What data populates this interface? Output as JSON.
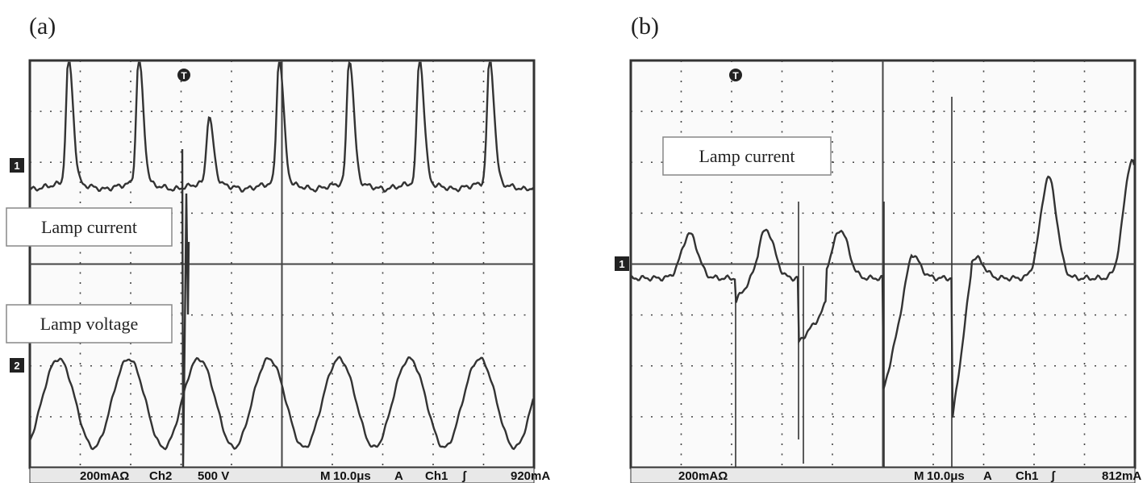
{
  "panels": [
    {
      "label": "(a)",
      "trigger_marker": "T",
      "channel_markers": [
        "1",
        "2"
      ],
      "annotations": [
        "Lamp current",
        "Lamp voltage"
      ],
      "status": [
        "200mAΩ",
        "Ch2",
        "500 V",
        "M",
        "10.0μs",
        "A",
        "Ch1",
        "ʃ",
        "920mA"
      ]
    },
    {
      "label": "(b)",
      "trigger_marker": "T",
      "channel_markers": [
        "1"
      ],
      "annotations": [
        "Lamp current"
      ],
      "status": [
        "200mAΩ",
        "M",
        "10.0μs",
        "A",
        "Ch1",
        "ʃ",
        "812mA"
      ]
    }
  ]
}
